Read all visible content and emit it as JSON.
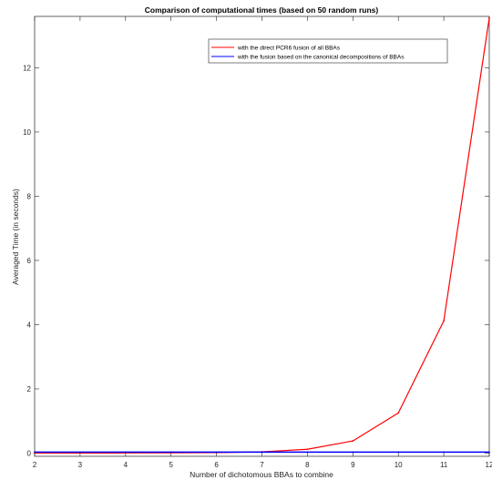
{
  "chart_data": {
    "type": "line",
    "title": "Comparison of computational times (based on 50 random runs)",
    "xlabel": "Number of dichotomous BBAs to combine",
    "ylabel": "Averaged Time (in seconds)",
    "xlim": [
      2,
      12
    ],
    "ylim": [
      -0.1,
      13.6
    ],
    "xticks": [
      2,
      3,
      4,
      5,
      6,
      7,
      8,
      9,
      10,
      11,
      12
    ],
    "yticks": [
      0,
      2,
      4,
      6,
      8,
      10,
      12
    ],
    "grid": false,
    "legend_position": "top-right",
    "x": [
      2,
      3,
      4,
      5,
      6,
      7,
      8,
      9,
      10,
      11,
      12
    ],
    "series": [
      {
        "name": "with the direct PCR6 fusion of all BBAs",
        "color": "#ff0000",
        "values": [
          0.001,
          0.002,
          0.004,
          0.008,
          0.015,
          0.04,
          0.12,
          0.38,
          1.25,
          4.12,
          13.55
        ]
      },
      {
        "name": "with the fusion based on the canonical decompositions of BBAs",
        "color": "#0000ff",
        "values": [
          0.03,
          0.03,
          0.03,
          0.03,
          0.03,
          0.03,
          0.03,
          0.03,
          0.03,
          0.03,
          0.03
        ]
      }
    ]
  }
}
